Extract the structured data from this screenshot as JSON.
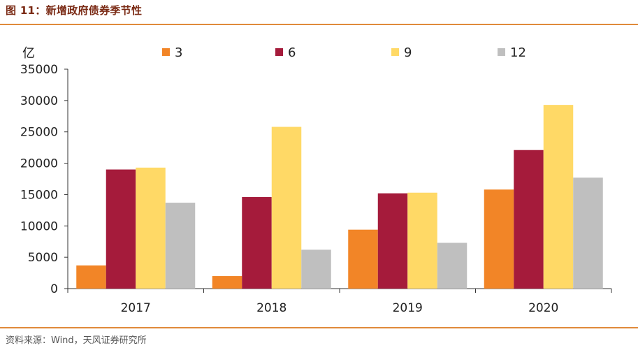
{
  "figure": {
    "title": "图 11：新增政府债券季节性",
    "source": "资料来源：Wind，天风证券研究所"
  },
  "chart_data": {
    "type": "bar",
    "title": "图 11：新增政府债券季节性",
    "ylabel": "亿",
    "xlabel": "",
    "ylim": [
      0,
      35000
    ],
    "yticks": [
      0,
      5000,
      10000,
      15000,
      20000,
      25000,
      30000,
      35000
    ],
    "categories": [
      "2017",
      "2018",
      "2019",
      "2020"
    ],
    "legend_position": "top",
    "grid": false,
    "series": [
      {
        "name": "3",
        "color": "#f28527",
        "values": [
          3700,
          2000,
          9400,
          15800
        ]
      },
      {
        "name": "6",
        "color": "#a51b3b",
        "values": [
          19000,
          14600,
          15200,
          22100
        ]
      },
      {
        "name": "9",
        "color": "#ffd966",
        "values": [
          19300,
          25800,
          15300,
          29300
        ]
      },
      {
        "name": "12",
        "color": "#bfbfbf",
        "values": [
          13700,
          6200,
          7300,
          17700
        ]
      }
    ]
  }
}
